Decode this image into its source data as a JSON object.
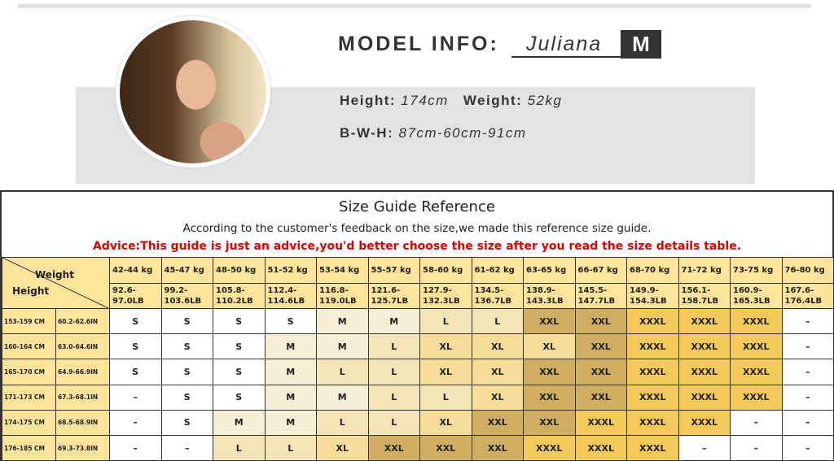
{
  "model": {
    "label": "MODEL INFO:",
    "name": "Juliana",
    "size": "M",
    "height_label": "Height:",
    "height": "174cm",
    "weight_label": "Weight:",
    "weight": "52kg",
    "bwh_label": "B-W-H:",
    "bwh": "87cm-60cm-91cm"
  },
  "guide": {
    "title": "Size Guide Reference",
    "subtitle": "According to the customer's feedback on the size,we made this reference size guide.",
    "advice": "Advice:This guide is just an advice,you'd better choose the size after you read the size details table.",
    "advice_color": "#e00000",
    "corner_weight": "Weight",
    "corner_height": "Height",
    "kg": [
      "42-44 kg",
      "45-47 kg",
      "48-50 kg",
      "51-52 kg",
      "53-54 kg",
      "55-57 kg",
      "58-60 kg",
      "61-62 kg",
      "63-65 kg",
      "66-67 kg",
      "68-70 kg",
      "71-72 kg",
      "73-75 kg",
      "76-80 kg"
    ],
    "lb": [
      "92.6-\n97.0LB",
      "99.2-\n103.6LB",
      "105.8-\n110.2LB",
      "112.4-\n114.6LB",
      "116.8-\n119.0LB",
      "121.6-\n125.7LB",
      "127.9-\n132.3LB",
      "134.5-\n136.7LB",
      "138.9-\n143.3LB",
      "145.5-\n147.7LB",
      "149.9-\n154.3LB",
      "156.1-\n158.7LB",
      "160.9-\n165.3LB",
      "167.6-\n176.4LB"
    ],
    "rows": [
      {
        "cm": "153-159 CM",
        "in": "60.2-62.6IN",
        "sizes": [
          "S",
          "S",
          "S",
          "S",
          "M",
          "M",
          "L",
          "L",
          "XXL",
          "XXL",
          "XXXL",
          "XXXL",
          "XXXL",
          "–"
        ]
      },
      {
        "cm": "160-164 CM",
        "in": "63.0-64.6IN",
        "sizes": [
          "S",
          "S",
          "S",
          "M",
          "M",
          "L",
          "XL",
          "XL",
          "XL",
          "XXL",
          "XXXL",
          "XXXL",
          "XXXL",
          "–"
        ]
      },
      {
        "cm": "165-170 CM",
        "in": "64.9-66.9IN",
        "sizes": [
          "S",
          "S",
          "S",
          "M",
          "L",
          "L",
          "XL",
          "XL",
          "XXL",
          "XXL",
          "XXXL",
          "XXXL",
          "XXXL",
          "–"
        ]
      },
      {
        "cm": "171-173 CM",
        "in": "67.3-68.1IN",
        "sizes": [
          "–",
          "S",
          "S",
          "M",
          "M",
          "L",
          "L",
          "XL",
          "XXL",
          "XXL",
          "XXXL",
          "XXXL",
          "XXXL",
          "–"
        ]
      },
      {
        "cm": "174-175 CM",
        "in": "68.5-68.9IN",
        "sizes": [
          "–",
          "S",
          "M",
          "M",
          "L",
          "L",
          "XL",
          "XXL",
          "XXL",
          "XXXL",
          "XXXL",
          "XXXL",
          "–",
          "–"
        ]
      },
      {
        "cm": "176-185 CM",
        "in": "69.3-73.8IN",
        "sizes": [
          "–",
          "–",
          "L",
          "L",
          "XL",
          "XXL",
          "XXL",
          "XXL",
          "XXXL",
          "XXXL",
          "XXXL",
          "–",
          "–",
          "–"
        ]
      }
    ],
    "size_colors": {
      "S": "#ffffff",
      "M": "#f7eed6",
      "L": "#f3e4b8",
      "XL": "#f8dd9a",
      "XXL": "#cfae62",
      "XXXL": "#f3c957",
      "–": "#ffffff"
    }
  }
}
